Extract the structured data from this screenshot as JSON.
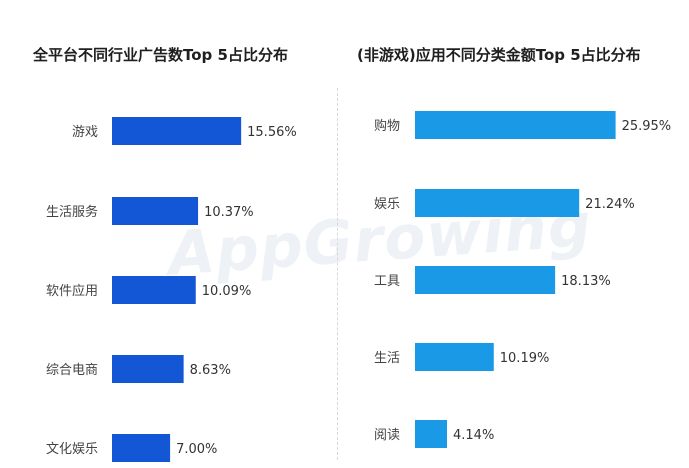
{
  "chart_data": [
    {
      "type": "bar",
      "orientation": "horizontal",
      "title": "全平台不同行业广告数Top 5占比分布",
      "categories": [
        "游戏",
        "生活服务",
        "软件应用",
        "综合电商",
        "文化娱乐"
      ],
      "values": [
        15.56,
        10.37,
        10.09,
        8.63,
        7.0
      ],
      "value_labels": [
        "15.56%",
        "10.37%",
        "10.09%",
        "8.63%",
        "7.00%"
      ],
      "unit": "%",
      "color": "#1457d6",
      "grid": false,
      "legend": "none"
    },
    {
      "type": "bar",
      "orientation": "horizontal",
      "title": "(非游戏)应用不同分类金额Top 5占比分布",
      "categories": [
        "购物",
        "娱乐",
        "工具",
        "生活",
        "阅读"
      ],
      "values": [
        25.95,
        21.24,
        18.13,
        10.19,
        4.14
      ],
      "value_labels": [
        "25.95%",
        "21.24%",
        "18.13%",
        "10.19%",
        "4.14%"
      ],
      "unit": "%",
      "color": "#1a9ae6",
      "grid": false,
      "legend": "none"
    }
  ],
  "watermark": "AppGrowing"
}
